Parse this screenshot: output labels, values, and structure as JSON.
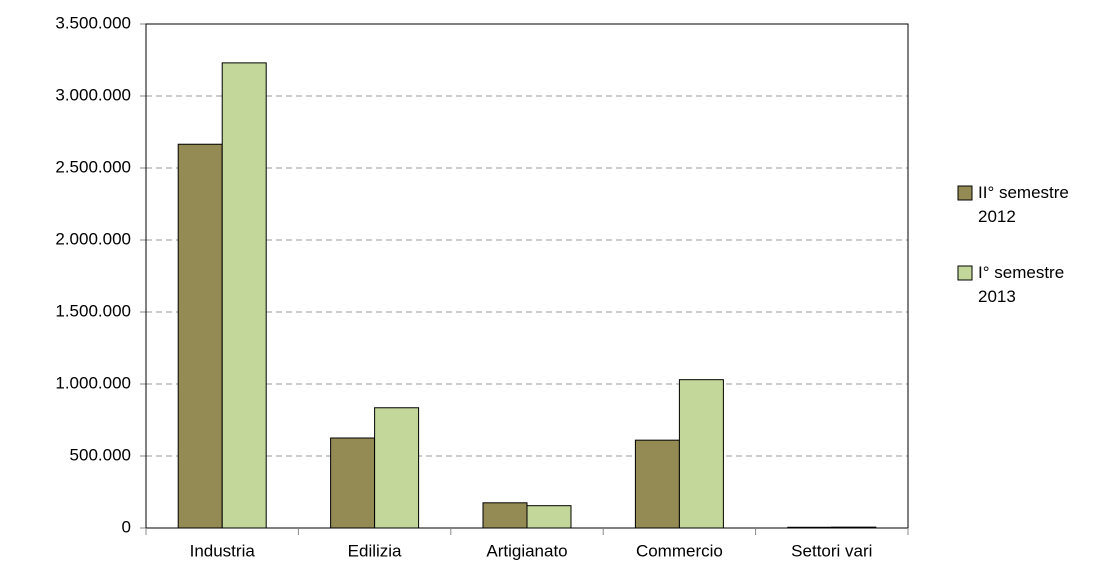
{
  "chart_data": {
    "type": "bar",
    "categories": [
      "Industria",
      "Edilizia",
      "Artigianato",
      "Commercio",
      "Settori vari"
    ],
    "series": [
      {
        "name": "II° semestre 2012",
        "color": "#948a54",
        "values": [
          2665000,
          625000,
          175000,
          610000,
          5000
        ]
      },
      {
        "name": "I° semestre 2013",
        "color": "#c4d79b",
        "values": [
          3230000,
          835000,
          155000,
          1030000,
          6000
        ]
      }
    ],
    "ylim": [
      0,
      3500000
    ],
    "yticks": [
      0,
      {
        "value": 500000,
        "label": "500.000"
      },
      {
        "value": 1000000,
        "label": "1.000.000"
      },
      {
        "value": 1500000,
        "label": "1.500.000"
      },
      {
        "value": 2000000,
        "label": "2.000.000"
      },
      {
        "value": 2500000,
        "label": "2.500.000"
      },
      {
        "value": 3000000,
        "label": "3.000.000"
      },
      {
        "value": 3500000,
        "label": "3.500.000"
      }
    ],
    "grid": true,
    "legend": "right"
  }
}
